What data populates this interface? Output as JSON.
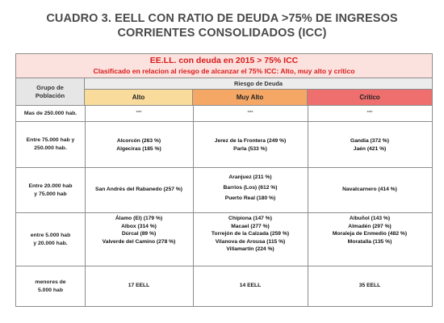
{
  "title": {
    "line1": "CUADRO 3. EELL CON RATIO DE DEUDA >75% DE INGRESOS",
    "line2": "CORRIENTES CONSOLIDADOS (ICC)"
  },
  "header": {
    "line1": "EE.LL. con deuda en 2015 > 75% ICC",
    "line2": "Clasificado en relacion al riesgo de alcanzar el 75% ICC: Alto, muy alto y crítico"
  },
  "columns": {
    "grupo_line1": "Grupo de",
    "grupo_line2": "Población",
    "riesgo": "Riesgo de Deuda",
    "alto": "Alto",
    "muy_alto": "Muy Alto",
    "critico": "Crítico"
  },
  "colors": {
    "header_bg": "#fbe2de",
    "header_text": "#d81b1b",
    "alto": "#f9dc9b",
    "muy_alto": "#f5a865",
    "critico": "#ef6e6e"
  },
  "rows": [
    {
      "group": [
        "Mas de 250.000 hab."
      ],
      "alto": [
        "---"
      ],
      "muy_alto": [
        "---"
      ],
      "critico": [
        "---"
      ]
    },
    {
      "group": [
        "Entre 75.000 hab y",
        "250.000 hab."
      ],
      "alto": [
        "Alcorcón  (263 %)",
        "Algeciras  (185 %)"
      ],
      "muy_alto": [
        "Jerez de la Frontera  (249 %)",
        "Parla  (533 %)"
      ],
      "critico": [
        "Gandia  (372 %)",
        "Jaén  (421 %)"
      ]
    },
    {
      "group": [
        "Entre 20.000 hab",
        "y 75.000 hab"
      ],
      "alto": [
        "San Andrés del Rabanedo  (257 %)"
      ],
      "muy_alto": [
        "Aranjuez  (211 %)",
        "Barrios  (Los)  (612 %)",
        "Puerto Real  (180 %)"
      ],
      "critico": [
        "Navalcarnero  (414 %)"
      ]
    },
    {
      "group": [
        "entre 5.000 hab",
        "y 20.000 hab."
      ],
      "alto": [
        "Álamo  (El)  (179 %)",
        "Albox  (314 %)",
        "Dúrcal  (89 %)",
        "Valverde del Camino  (278 %)"
      ],
      "muy_alto": [
        "Chipiona  (147 %)",
        "Macael  (277 %)",
        "Torrejón de la Calzada  (259 %)",
        "Vilanova de Arousa  (115 %)",
        "Villamartín  (224 %)"
      ],
      "critico": [
        "Albuñol  (143 %)",
        "Almadén  (297 %)",
        "Moraleja de Enmedio  (482 %)",
        "Moratalla  (135 %)"
      ]
    },
    {
      "group": [
        "menores de",
        "5.000 hab"
      ],
      "alto": [
        "17 EELL"
      ],
      "muy_alto": [
        "14 EELL"
      ],
      "critico": [
        "35 EELL"
      ]
    }
  ]
}
